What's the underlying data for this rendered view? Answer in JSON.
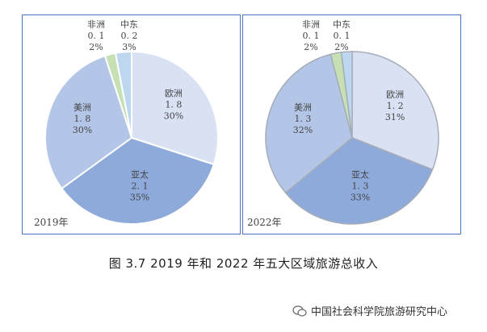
{
  "chart_data": [
    {
      "type": "pie",
      "year_label": "2019年",
      "unit": "",
      "slices": [
        {
          "name": "欧洲",
          "value": "1.8",
          "pct": 30,
          "color": "#d9e2f3"
        },
        {
          "name": "亚太",
          "value": "2.1",
          "pct": 35,
          "color": "#8eaadb"
        },
        {
          "name": "美洲",
          "value": "1.8",
          "pct": 30,
          "color": "#b4c6e7"
        },
        {
          "name": "非洲",
          "value": "0.1",
          "pct": 2,
          "color": "#c6e0b4"
        },
        {
          "name": "中东",
          "value": "0.2",
          "pct": 3,
          "color": "#bdd7ee"
        }
      ]
    },
    {
      "type": "pie",
      "year_label": "2022年",
      "slices": [
        {
          "name": "欧洲",
          "value": "1.2",
          "pct": 31,
          "color": "#d9e2f3"
        },
        {
          "name": "亚太",
          "value": "1.3",
          "pct": 33,
          "color": "#8eaadb"
        },
        {
          "name": "美洲",
          "value": "1.3",
          "pct": 32,
          "color": "#b4c6e7"
        },
        {
          "name": "非洲",
          "value": "0.1",
          "pct": 2,
          "color": "#c6e0b4"
        },
        {
          "name": "中东",
          "value": "0.1",
          "pct": 2,
          "color": "#bdd7ee"
        }
      ]
    }
  ],
  "caption": "图 3.7   2019 年和 2022 年五大区域旅游总收入",
  "watermark": "中国社会科学院旅游研究中心"
}
